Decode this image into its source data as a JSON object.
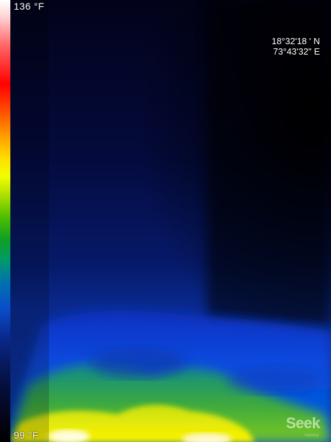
{
  "scale": {
    "max_label": "136 °F",
    "min_label": "99 °F"
  },
  "gps": {
    "latitude": "18°32'18 ' N",
    "longitude": "73°43'32\" E"
  },
  "brand": {
    "name": "Seek",
    "sub": "thermal"
  }
}
